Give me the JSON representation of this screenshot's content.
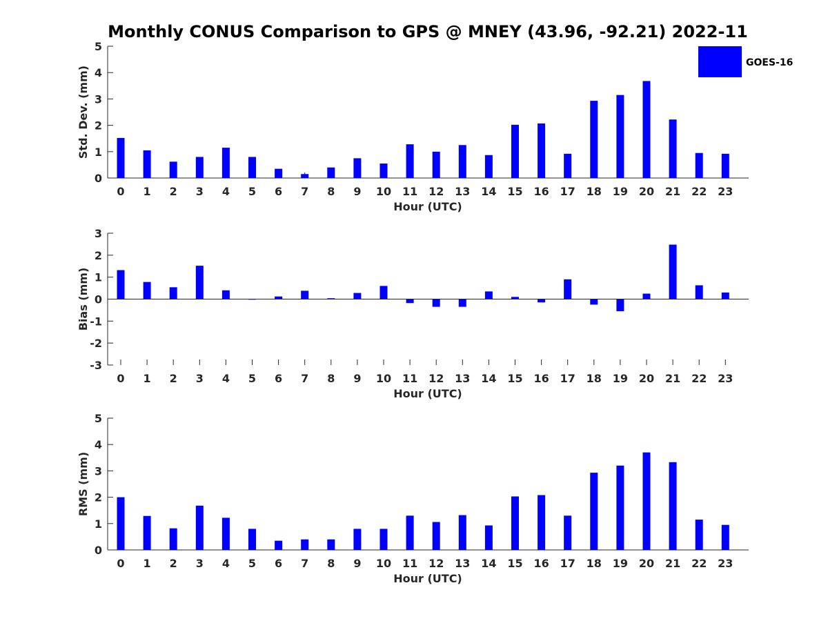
{
  "title": "Monthly CONUS Comparison to GPS @ MNEY (43.96, -92.21) 2022-11",
  "legend": {
    "label": "GOES-16",
    "color": "#0000ff",
    "placement": "top-right"
  },
  "chart_data": [
    {
      "type": "bar",
      "name": "std-dev",
      "title": "Monthly CONUS Comparison to GPS @ MNEY (43.96, -92.21) 2022-11",
      "xlabel": "Hour (UTC)",
      "ylabel": "Std. Dev. (mm)",
      "ylim": [
        0,
        5
      ],
      "yticks": [
        "0",
        "1",
        "2",
        "3",
        "4",
        "5"
      ],
      "categories": [
        "0",
        "1",
        "2",
        "3",
        "4",
        "5",
        "6",
        "7",
        "8",
        "9",
        "10",
        "11",
        "12",
        "13",
        "14",
        "15",
        "16",
        "17",
        "18",
        "19",
        "20",
        "21",
        "22",
        "23"
      ],
      "series": [
        {
          "name": "GOES-16",
          "color": "#0000ff",
          "values": [
            1.52,
            1.05,
            0.62,
            0.8,
            1.15,
            0.8,
            0.35,
            0.15,
            0.4,
            0.75,
            0.55,
            1.28,
            1.0,
            1.25,
            0.87,
            2.02,
            2.07,
            0.92,
            2.93,
            3.15,
            3.68,
            2.22,
            0.95,
            0.92
          ]
        }
      ]
    },
    {
      "type": "bar",
      "name": "bias",
      "xlabel": "Hour (UTC)",
      "ylabel": "Bias (mm)",
      "ylim": [
        -3,
        3
      ],
      "yticks": [
        "-3",
        "-2",
        "-1",
        "0",
        "1",
        "2",
        "3"
      ],
      "categories": [
        "0",
        "1",
        "2",
        "3",
        "4",
        "5",
        "6",
        "7",
        "8",
        "9",
        "10",
        "11",
        "12",
        "13",
        "14",
        "15",
        "16",
        "17",
        "18",
        "19",
        "20",
        "21",
        "22",
        "23"
      ],
      "series": [
        {
          "name": "GOES-16",
          "color": "#0000ff",
          "values": [
            1.32,
            0.78,
            0.54,
            1.52,
            0.4,
            -0.02,
            0.12,
            0.38,
            0.04,
            0.28,
            0.6,
            -0.18,
            -0.35,
            -0.35,
            0.35,
            0.1,
            -0.15,
            0.9,
            -0.25,
            -0.55,
            0.25,
            2.48,
            0.63,
            0.3
          ]
        }
      ]
    },
    {
      "type": "bar",
      "name": "rms",
      "xlabel": "Hour (UTC)",
      "ylabel": "RMS (mm)",
      "ylim": [
        0,
        5
      ],
      "yticks": [
        "0",
        "1",
        "2",
        "3",
        "4",
        "5"
      ],
      "categories": [
        "0",
        "1",
        "2",
        "3",
        "4",
        "5",
        "6",
        "7",
        "8",
        "9",
        "10",
        "11",
        "12",
        "13",
        "14",
        "15",
        "16",
        "17",
        "18",
        "19",
        "20",
        "21",
        "22",
        "23"
      ],
      "series": [
        {
          "name": "GOES-16",
          "color": "#0000ff",
          "values": [
            2.0,
            1.29,
            0.82,
            1.68,
            1.22,
            0.8,
            0.35,
            0.4,
            0.4,
            0.8,
            0.8,
            1.3,
            1.06,
            1.32,
            0.93,
            2.03,
            2.08,
            1.3,
            2.93,
            3.2,
            3.7,
            3.33,
            1.15,
            0.95
          ]
        }
      ]
    }
  ]
}
